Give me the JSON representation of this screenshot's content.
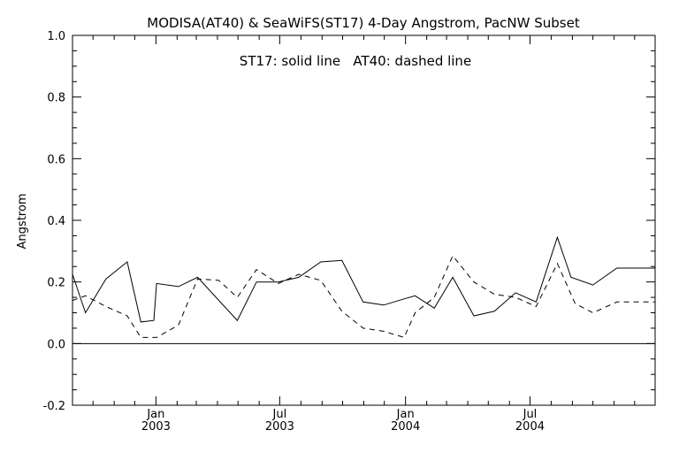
{
  "chart_data": {
    "type": "line",
    "title": "MODISA(AT40) & SeaWiFS(ST17) 4-Day Angstrom, PacNW Subset",
    "xlabel": "",
    "ylabel": "Angstrom",
    "annotation": "ST17: solid line   AT40: dashed line",
    "xlim": [
      "2002-09-01",
      "2004-12-31"
    ],
    "ylim": [
      -0.2,
      1.0
    ],
    "y_ticks": [
      -0.2,
      0.0,
      0.2,
      0.4,
      0.6,
      0.8,
      1.0
    ],
    "y_tick_labels": [
      "-0.2",
      "0.0",
      "0.2",
      "0.4",
      "0.6",
      "0.8",
      "1.0"
    ],
    "x_ticks": [
      {
        "date": "2003-01-01",
        "label1": "Jan",
        "label2": "2003"
      },
      {
        "date": "2003-07-01",
        "label1": "Jul",
        "label2": "2003"
      },
      {
        "date": "2004-01-01",
        "label1": "Jan",
        "label2": "2004"
      },
      {
        "date": "2004-07-01",
        "label1": "Jul",
        "label2": "2004"
      }
    ],
    "reference_line": 0.0,
    "series": [
      {
        "name": "ST17",
        "style": "solid",
        "color": "#000000",
        "x": [
          "2002-09-01",
          "2002-09-20",
          "2002-10-20",
          "2002-11-20",
          "2002-12-10",
          "2002-12-29",
          "2003-01-02",
          "2003-02-03",
          "2003-03-03",
          "2003-04-30",
          "2003-05-28",
          "2003-06-29",
          "2003-07-29",
          "2003-08-30",
          "2003-09-30",
          "2003-10-31",
          "2003-11-30",
          "2003-12-30",
          "2004-01-15",
          "2004-02-12",
          "2004-03-10",
          "2004-04-10",
          "2004-05-10",
          "2004-06-10",
          "2004-07-10",
          "2004-08-10",
          "2004-08-30",
          "2004-10-01",
          "2004-11-05",
          "2004-12-31"
        ],
        "y": [
          0.225,
          0.1,
          0.21,
          0.265,
          0.07,
          0.075,
          0.195,
          0.185,
          0.215,
          0.075,
          0.2,
          0.2,
          0.215,
          0.265,
          0.27,
          0.135,
          0.125,
          0.145,
          0.155,
          0.115,
          0.215,
          0.09,
          0.105,
          0.165,
          0.135,
          0.345,
          0.215,
          0.19,
          0.245,
          0.245
        ]
      },
      {
        "name": "AT40",
        "style": "dashed",
        "color": "#000000",
        "x": [
          "2002-09-01",
          "2002-09-20",
          "2002-10-20",
          "2002-11-20",
          "2002-12-10",
          "2002-12-29",
          "2003-01-02",
          "2003-02-03",
          "2003-03-03",
          "2003-04-03",
          "2003-04-30",
          "2003-05-28",
          "2003-06-29",
          "2003-07-29",
          "2003-08-30",
          "2003-09-30",
          "2003-10-31",
          "2003-11-30",
          "2003-12-30",
          "2004-01-15",
          "2004-02-12",
          "2004-03-10",
          "2004-04-10",
          "2004-05-10",
          "2004-06-10",
          "2004-07-10",
          "2004-08-10",
          "2004-09-05",
          "2004-10-01",
          "2004-11-05",
          "2004-12-31"
        ],
        "y": [
          0.14,
          0.155,
          0.12,
          0.09,
          0.02,
          0.02,
          0.02,
          0.06,
          0.21,
          0.205,
          0.15,
          0.24,
          0.195,
          0.225,
          0.205,
          0.105,
          0.05,
          0.04,
          0.02,
          0.1,
          0.15,
          0.285,
          0.2,
          0.16,
          0.15,
          0.12,
          0.26,
          0.13,
          0.1,
          0.135,
          0.135
        ]
      }
    ]
  }
}
